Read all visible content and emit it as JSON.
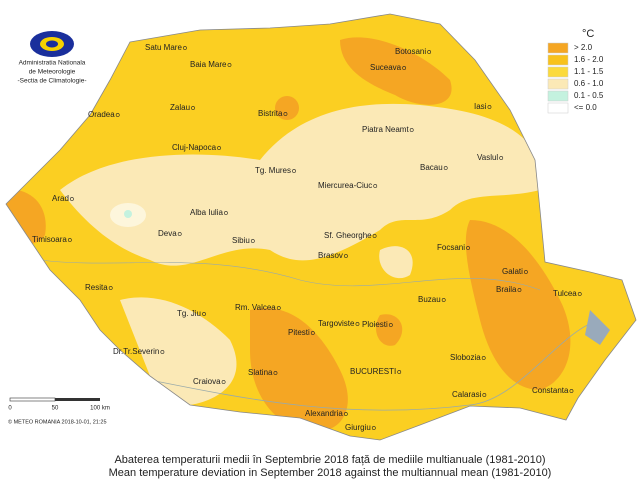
{
  "logo": {
    "lines": [
      "Administratia Nationala",
      "de Meteorologie",
      "-Sectia de Climatologie-"
    ]
  },
  "legend": {
    "title": "°C",
    "items": [
      {
        "label": "> 2.0",
        "color": "#f5a623"
      },
      {
        "label": "1.6 - 2.0",
        "color": "#f8c21c"
      },
      {
        "label": "1.1 - 1.5",
        "color": "#fbda3c"
      },
      {
        "label": "0.6 - 1.0",
        "color": "#fbe9b6"
      },
      {
        "label": "0.1 - 0.5",
        "color": "#c4f2df"
      },
      {
        "label": "<= 0.0",
        "color": "#ffffff"
      }
    ]
  },
  "cities": [
    "Satu Mare",
    "Baia Mare",
    "Botosani",
    "Suceava",
    "Zalau",
    "Oradea",
    "Bistrita",
    "Iasi",
    "Piatra Neamt",
    "Cluj-Napoca",
    "Vaslul",
    "Tg. Mures",
    "Bacau",
    "Miercurea-Ciuc",
    "Arad",
    "Alba Iulia",
    "Deva",
    "Sibiu",
    "Sf. Gheorghe",
    "Timisoara",
    "Brasov",
    "Focsani",
    "Resita",
    "Galati",
    "Braila",
    "Tulcea",
    "Tg. Jiu",
    "Rm. Valcea",
    "Targoviste",
    "Ploiesti",
    "Buzau",
    "Pitesti",
    "Dr.Tr.Severin",
    "Slobozia",
    "BUCURESTI",
    "Slatina",
    "Craiova",
    "Calarasi",
    "Constanta",
    "Alexandria",
    "Giurgiu"
  ],
  "scale": {
    "labels": [
      "0",
      "50",
      "100 km"
    ]
  },
  "copyright": "© METEO ROMANIA 2018-10-01, 21:25",
  "caption": {
    "ro": "Abaterea temperaturii medii în  Septembrie 2018  față de mediile multianuale (1981-2010)",
    "en": "Mean temperature deviation in  September 2018  against the multiannual mean (1981-2010)"
  }
}
